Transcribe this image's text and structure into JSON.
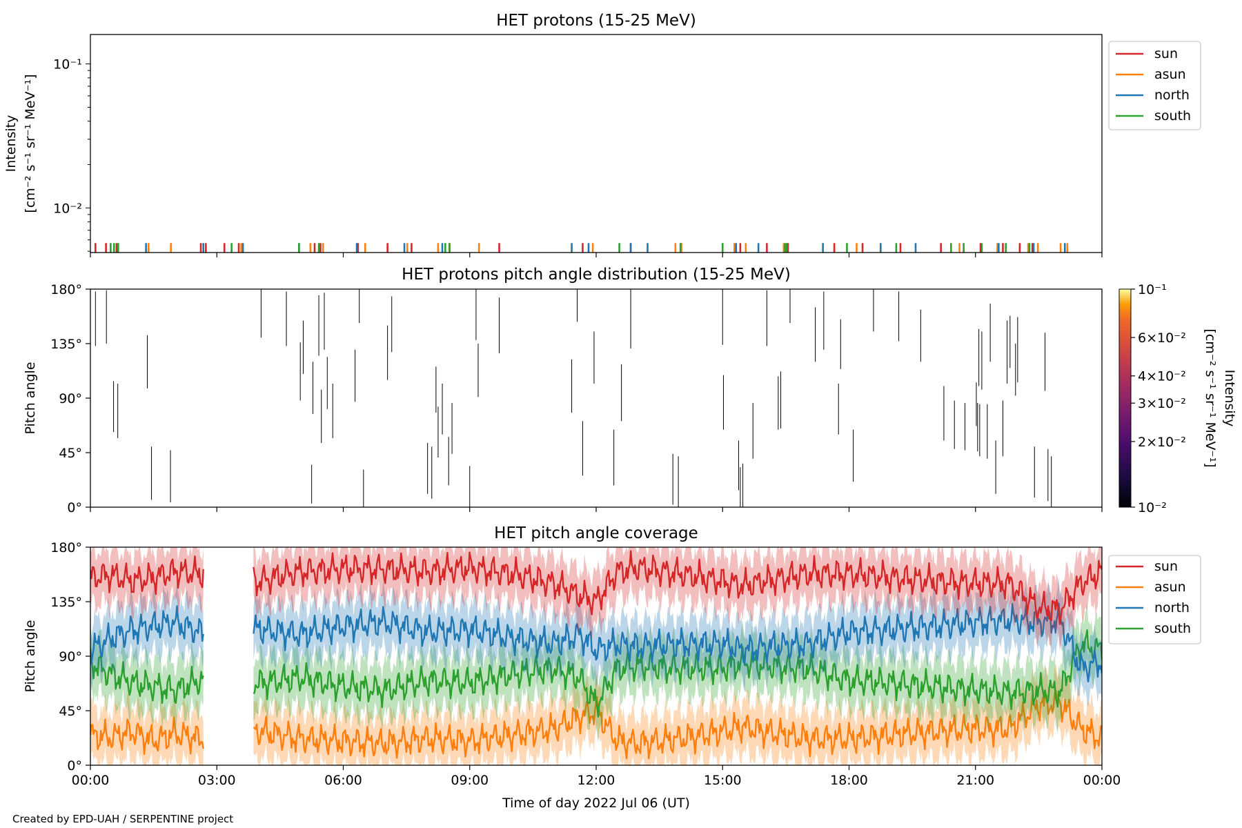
{
  "figure": {
    "footer": "Created by EPD-UAH / SERPENTINE project",
    "xlabel": "Time of day 2022 Jul 06 (UT)",
    "xticks": [
      "00:00",
      "03:00",
      "06:00",
      "09:00",
      "12:00",
      "15:00",
      "18:00",
      "21:00",
      "00:00"
    ]
  },
  "chart_data": [
    {
      "type": "line",
      "title": "HET protons (15-25 MeV)",
      "ylabel_line1": "Intensity",
      "ylabel_line2": "[cm⁻² s⁻¹ sr⁻¹ MeV⁻¹]",
      "yscale": "log",
      "ylim": [
        0.0049,
        0.16
      ],
      "xlim_hours": [
        0,
        24
      ],
      "ytick_labels": [
        {
          "value": 0.1,
          "label": "10⁻¹"
        },
        {
          "value": 0.01,
          "label": "10⁻²"
        }
      ],
      "legend": [
        "sun",
        "asun",
        "north",
        "south"
      ],
      "legend_position": "upper-right-outside",
      "series_colors": {
        "sun": "#d62728",
        "asun": "#ff7f0e",
        "north": "#1f77b4",
        "south": "#2ca02c"
      },
      "level": 0.0057,
      "series": [
        {
          "name": "sun",
          "x": [
            0.12,
            0.37,
            0.62,
            2.62,
            2.74,
            3.18,
            3.52,
            5.32,
            5.46,
            6.35,
            7.05,
            7.62,
            8.52,
            9.7,
            11.68,
            12.82,
            14.02,
            15.42,
            16.05,
            16.55,
            17.65,
            18.32,
            19.22,
            20.18,
            21.12,
            21.65,
            22.05,
            22.35
          ]
        },
        {
          "name": "asun",
          "x": [
            1.38,
            1.91,
            3.58,
            5.22,
            5.52,
            6.52,
            7.52,
            8.25,
            9.22,
            11.92,
            13.88,
            14.02,
            15.28,
            15.55,
            16.45,
            18.18,
            20.62,
            21.52,
            22.25,
            22.48,
            23.02,
            23.18
          ]
        },
        {
          "name": "north",
          "x": [
            1.32,
            2.68,
            3.62,
            4.95,
            6.32,
            7.45,
            8.35,
            11.42,
            11.82,
            12.82,
            13.22,
            15.32,
            15.85,
            17.38,
            18.75,
            19.58,
            21.55,
            22.38,
            23.12
          ]
        },
        {
          "name": "south",
          "x": [
            0.48,
            0.56,
            0.66,
            3.35,
            4.95,
            5.42,
            8.42,
            8.52,
            12.55,
            14.0,
            15.0,
            16.48,
            16.52,
            17.95,
            19.12,
            20.42,
            20.72,
            21.15,
            21.72,
            22.28
          ]
        }
      ]
    },
    {
      "type": "heatmap",
      "title": "HET protons pitch angle distribution (15-25 MeV)",
      "ylabel": "Pitch angle",
      "ylim": [
        0,
        180
      ],
      "yticks": [
        "0°",
        "45°",
        "90°",
        "135°",
        "180°"
      ],
      "colorbar_label_line1": "Intensity",
      "colorbar_label_line2": "[cm⁻² s⁻¹ sr⁻¹ MeV⁻¹]",
      "colorbar_scale": "log",
      "colorbar_range": [
        0.01,
        0.1
      ],
      "colorbar_ticks": [
        {
          "value": 0.1,
          "label": "10⁻¹"
        },
        {
          "value": 0.06,
          "label": "6×10⁻²"
        },
        {
          "value": 0.04,
          "label": "4×10⁻²"
        },
        {
          "value": 0.03,
          "label": "3×10⁻²"
        },
        {
          "value": 0.02,
          "label": "2×10⁻²"
        },
        {
          "value": 0.01,
          "label": "10⁻²"
        }
      ],
      "segments": [
        [
          0.12,
          133,
          178
        ],
        [
          0.38,
          135,
          179
        ],
        [
          0.55,
          62,
          104
        ],
        [
          0.65,
          57,
          102
        ],
        [
          1.35,
          98,
          142
        ],
        [
          1.45,
          6,
          50
        ],
        [
          1.9,
          4,
          47
        ],
        [
          4.05,
          140,
          180
        ],
        [
          4.65,
          133,
          178
        ],
        [
          4.98,
          88,
          136
        ],
        [
          5.05,
          110,
          154
        ],
        [
          5.25,
          3,
          35
        ],
        [
          5.28,
          77,
          120
        ],
        [
          5.42,
          125,
          175
        ],
        [
          5.48,
          53,
          97
        ],
        [
          5.55,
          130,
          177
        ],
        [
          5.62,
          81,
          124
        ],
        [
          5.75,
          57,
          102
        ],
        [
          6.28,
          87,
          130
        ],
        [
          6.38,
          152,
          180
        ],
        [
          6.48,
          0,
          31
        ],
        [
          7.05,
          105,
          150
        ],
        [
          7.15,
          128,
          174
        ],
        [
          8.0,
          11,
          53
        ],
        [
          8.1,
          7,
          50
        ],
        [
          8.2,
          78,
          116
        ],
        [
          8.25,
          41,
          83
        ],
        [
          8.35,
          60,
          102
        ],
        [
          8.5,
          18,
          58
        ],
        [
          8.58,
          44,
          86
        ],
        [
          9.0,
          0,
          34
        ],
        [
          9.15,
          138,
          180
        ],
        [
          9.2,
          91,
          135
        ],
        [
          9.7,
          127,
          173
        ],
        [
          11.42,
          78,
          122
        ],
        [
          11.55,
          153,
          180
        ],
        [
          11.68,
          26,
          71
        ],
        [
          11.95,
          102,
          145
        ],
        [
          12.42,
          18,
          64
        ],
        [
          12.6,
          71,
          118
        ],
        [
          12.82,
          131,
          180
        ],
        [
          13.82,
          2,
          44
        ],
        [
          13.95,
          0,
          42
        ],
        [
          15.0,
          134,
          180
        ],
        [
          15.02,
          64,
          109
        ],
        [
          15.38,
          14,
          55
        ],
        [
          15.42,
          0,
          33
        ],
        [
          15.48,
          0,
          36
        ],
        [
          15.72,
          40,
          86
        ],
        [
          16.05,
          133,
          179
        ],
        [
          16.32,
          64,
          108
        ],
        [
          16.38,
          65,
          112
        ],
        [
          16.6,
          152,
          180
        ],
        [
          17.2,
          120,
          165
        ],
        [
          17.4,
          130,
          178
        ],
        [
          17.75,
          60,
          102
        ],
        [
          17.8,
          114,
          155
        ],
        [
          18.1,
          21,
          64
        ],
        [
          18.58,
          145,
          180
        ],
        [
          19.18,
          137,
          178
        ],
        [
          19.7,
          120,
          163
        ],
        [
          20.25,
          55,
          100
        ],
        [
          20.5,
          48,
          88
        ],
        [
          20.75,
          47,
          86
        ],
        [
          21.02,
          67,
          103
        ],
        [
          21.05,
          46,
          86
        ],
        [
          21.08,
          100,
          147
        ],
        [
          21.1,
          42,
          85
        ],
        [
          21.15,
          97,
          145
        ],
        [
          21.28,
          40,
          85
        ],
        [
          21.35,
          120,
          168
        ],
        [
          21.48,
          11,
          55
        ],
        [
          21.65,
          42,
          88
        ],
        [
          21.75,
          102,
          154
        ],
        [
          21.82,
          115,
          158
        ],
        [
          21.95,
          92,
          135
        ],
        [
          22.0,
          103,
          157
        ],
        [
          22.4,
          8,
          50
        ],
        [
          22.65,
          96,
          144
        ],
        [
          22.72,
          5,
          48
        ],
        [
          22.8,
          0,
          42
        ]
      ]
    },
    {
      "type": "line",
      "title": "HET pitch angle coverage",
      "ylabel": "Pitch angle",
      "ylim": [
        0,
        180
      ],
      "yticks": [
        "0°",
        "45°",
        "90°",
        "135°",
        "180°"
      ],
      "legend": [
        "sun",
        "asun",
        "north",
        "south"
      ],
      "legend_position": "upper-right-outside",
      "series_colors": {
        "sun": "#d62728",
        "asun": "#ff7f0e",
        "north": "#1f77b4",
        "south": "#2ca02c"
      },
      "band_halfwidth_deg": 22,
      "data_gap_hours": [
        2.68,
        3.87
      ],
      "series": [
        {
          "name": "sun",
          "x": [
            0,
            0.5,
            1,
            1.5,
            2,
            2.6,
            4,
            5,
            6,
            7,
            8,
            9,
            10,
            11,
            11.6,
            12,
            12.5,
            13,
            14,
            15,
            15.5,
            16,
            17,
            18,
            19,
            20,
            21,
            21.8,
            22.5,
            23,
            23.5,
            24
          ],
          "values": [
            155,
            157,
            152,
            155,
            160,
            158,
            152,
            160,
            162,
            162,
            160,
            163,
            158,
            150,
            140,
            135,
            160,
            163,
            158,
            152,
            148,
            152,
            158,
            158,
            155,
            152,
            150,
            150,
            130,
            128,
            150,
            160
          ]
        },
        {
          "name": "asun",
          "x": [
            0,
            0.5,
            1,
            1.5,
            2,
            2.6,
            4,
            5,
            6,
            7,
            8,
            9,
            10,
            11,
            11.6,
            12,
            12.5,
            13,
            14,
            15,
            15.5,
            16,
            17,
            18,
            19,
            20,
            21,
            21.8,
            22.5,
            23,
            23.5,
            24
          ],
          "values": [
            25,
            23,
            28,
            20,
            26,
            22,
            28,
            22,
            20,
            18,
            22,
            20,
            25,
            30,
            40,
            45,
            20,
            18,
            22,
            28,
            32,
            28,
            22,
            22,
            25,
            28,
            30,
            30,
            50,
            52,
            30,
            22
          ]
        },
        {
          "name": "north",
          "x": [
            0,
            0.5,
            1,
            1.5,
            2,
            2.6,
            4,
            5,
            6,
            7,
            8,
            9,
            10,
            11,
            11.6,
            12,
            12.5,
            13,
            14,
            15,
            15.5,
            16,
            17,
            18,
            19,
            20,
            21,
            21.8,
            22.5,
            23,
            23.5,
            24
          ],
          "values": [
            95,
            105,
            112,
            115,
            118,
            110,
            112,
            108,
            115,
            118,
            110,
            112,
            105,
            100,
            108,
            95,
            100,
            98,
            100,
            100,
            95,
            98,
            100,
            110,
            112,
            115,
            118,
            120,
            118,
            120,
            80,
            85
          ]
        },
        {
          "name": "south",
          "x": [
            0,
            0.5,
            1,
            1.5,
            2,
            2.6,
            4,
            5,
            6,
            7,
            8,
            9,
            10,
            11,
            11.6,
            12,
            12.5,
            13,
            14,
            15,
            15.5,
            16,
            17,
            18,
            19,
            20,
            21,
            21.8,
            22.5,
            23,
            23.5,
            24
          ],
          "values": [
            85,
            75,
            68,
            65,
            62,
            70,
            68,
            72,
            65,
            62,
            70,
            68,
            75,
            80,
            72,
            50,
            80,
            82,
            80,
            80,
            85,
            82,
            80,
            70,
            68,
            65,
            62,
            60,
            62,
            60,
            100,
            95
          ]
        }
      ]
    }
  ]
}
